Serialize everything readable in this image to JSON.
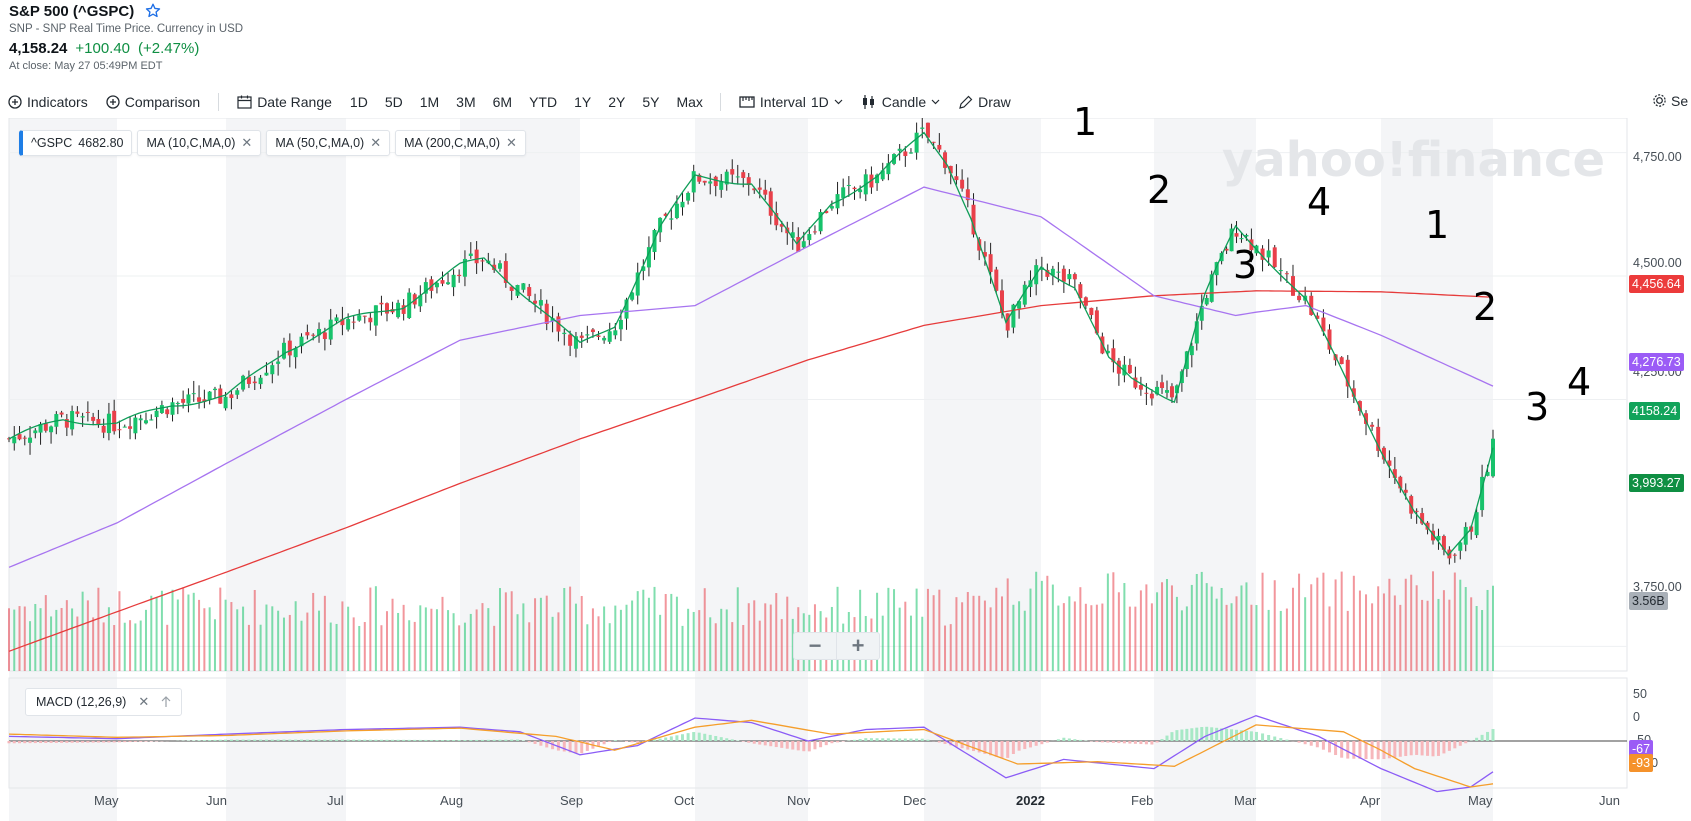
{
  "header": {
    "title": "S&P 500 (^GSPC)",
    "subtitle": "SNP - SNP Real Time Price. Currency in USD",
    "price": "4,158.24",
    "change": "+100.40",
    "change_pct": "(+2.47%)",
    "close_time": "At close: May 27 05:49PM EDT",
    "star_icon": "star-outline-icon"
  },
  "toolbar": {
    "indicators_label": "Indicators",
    "comparison_label": "Comparison",
    "date_range_label": "Date Range",
    "ranges": [
      "1D",
      "5D",
      "1M",
      "3M",
      "6M",
      "YTD",
      "1Y",
      "2Y",
      "5Y",
      "Max"
    ],
    "interval_label": "Interval",
    "interval_value": "1D",
    "candle_label": "Candle",
    "draw_label": "Draw",
    "settings_label": "Se"
  },
  "indicator_chips": [
    {
      "label": "^GSPC",
      "value": "4682.80",
      "closable": false
    },
    {
      "label": "MA (10,C,MA,0)",
      "closable": true
    },
    {
      "label": "MA (50,C,MA,0)",
      "closable": true
    },
    {
      "label": "MA (200,C,MA,0)",
      "closable": true
    }
  ],
  "watermark": "yahoo!finance",
  "zoom": {
    "minus": "−",
    "plus": "+"
  },
  "macd_label": "MACD (12,26,9)",
  "badges": {
    "ma200": {
      "text": "4,456.64",
      "color": "#ec3b3b"
    },
    "ma50": {
      "text": "4,276.73",
      "color": "#9b5cf6"
    },
    "price": {
      "text": "4158.24",
      "color": "#11a35a"
    },
    "ma10": {
      "text": "3,993.27",
      "color": "#0f8f43"
    },
    "volume": {
      "text": "3.56B",
      "color": "#a9b0b8"
    },
    "macd_line": {
      "text": "-67",
      "color": "#9b5cf6"
    },
    "macd_signal": {
      "text": "-93",
      "color": "#f5922b"
    }
  },
  "annotations": [
    "1",
    "2",
    "3",
    "4",
    "1",
    "2",
    "3",
    "4"
  ],
  "chart_data": {
    "type": "candlestick",
    "symbol": "^GSPC",
    "y_ticks": [
      "4,750.00",
      "4,500.00",
      "4,250.00",
      "3,750.00"
    ],
    "ylim": [
      3700,
      4820
    ],
    "x_labels": [
      "May",
      "Jun",
      "Jul",
      "Aug",
      "Sep",
      "Oct",
      "Nov",
      "Dec",
      "2022",
      "Feb",
      "Mar",
      "Apr",
      "May",
      "Jun"
    ],
    "macd_ticks": [
      "50",
      "0",
      "-50",
      "-100"
    ],
    "colors": {
      "up": "#17c26b",
      "down": "#e8404a",
      "ma10": "#0f9d58",
      "ma50": "#a774f0",
      "ma200": "#e63b3b",
      "macd": "#8b5cf6",
      "signal": "#f59e2b"
    },
    "close_path": [
      {
        "m": 0,
        "v": 4170
      },
      {
        "m": 0.5,
        "v": 4210
      },
      {
        "m": 1,
        "v": 4200
      },
      {
        "m": 1.5,
        "v": 4240
      },
      {
        "m": 2,
        "v": 4255
      },
      {
        "m": 2.5,
        "v": 4350
      },
      {
        "m": 3,
        "v": 4410
      },
      {
        "m": 3.5,
        "v": 4440
      },
      {
        "m": 4,
        "v": 4520
      },
      {
        "m": 4.2,
        "v": 4535
      },
      {
        "m": 4.6,
        "v": 4450
      },
      {
        "m": 5,
        "v": 4360
      },
      {
        "m": 5.3,
        "v": 4400
      },
      {
        "m": 5.7,
        "v": 4600
      },
      {
        "m": 6,
        "v": 4700
      },
      {
        "m": 6.5,
        "v": 4690
      },
      {
        "m": 6.9,
        "v": 4560
      },
      {
        "m": 7.2,
        "v": 4650
      },
      {
        "m": 7.6,
        "v": 4700
      },
      {
        "m": 8,
        "v": 4790
      },
      {
        "m": 8.2,
        "v": 4730
      },
      {
        "m": 8.4,
        "v": 4620
      },
      {
        "m": 8.7,
        "v": 4400
      },
      {
        "m": 9,
        "v": 4520
      },
      {
        "m": 9.3,
        "v": 4480
      },
      {
        "m": 9.6,
        "v": 4330
      },
      {
        "m": 9.8,
        "v": 4290
      },
      {
        "m": 10.2,
        "v": 4250
      },
      {
        "m": 10.5,
        "v": 4460
      },
      {
        "m": 10.8,
        "v": 4600
      },
      {
        "m": 11,
        "v": 4560
      },
      {
        "m": 11.4,
        "v": 4450
      },
      {
        "m": 11.7,
        "v": 4300
      },
      {
        "m": 12,
        "v": 4150
      },
      {
        "m": 12.3,
        "v": 4020
      },
      {
        "m": 12.6,
        "v": 3930
      },
      {
        "m": 12.8,
        "v": 3990
      },
      {
        "m": 13,
        "v": 4158
      }
    ],
    "ma50_path": [
      {
        "m": 0,
        "v": 3910
      },
      {
        "m": 1,
        "v": 4000
      },
      {
        "m": 2,
        "v": 4120
      },
      {
        "m": 3,
        "v": 4250
      },
      {
        "m": 4,
        "v": 4370
      },
      {
        "m": 5,
        "v": 4420
      },
      {
        "m": 6,
        "v": 4440
      },
      {
        "m": 7,
        "v": 4560
      },
      {
        "m": 8,
        "v": 4680
      },
      {
        "m": 9,
        "v": 4620
      },
      {
        "m": 10,
        "v": 4460
      },
      {
        "m": 10.8,
        "v": 4420
      },
      {
        "m": 11.4,
        "v": 4440
      },
      {
        "m": 12,
        "v": 4380
      },
      {
        "m": 13,
        "v": 4277
      }
    ],
    "ma200_path": [
      {
        "m": 0,
        "v": 3740
      },
      {
        "m": 1,
        "v": 3820
      },
      {
        "m": 2,
        "v": 3900
      },
      {
        "m": 3,
        "v": 3990
      },
      {
        "m": 4,
        "v": 4080
      },
      {
        "m": 5,
        "v": 4170
      },
      {
        "m": 6,
        "v": 4250
      },
      {
        "m": 7,
        "v": 4330
      },
      {
        "m": 8,
        "v": 4400
      },
      {
        "m": 9,
        "v": 4440
      },
      {
        "m": 10,
        "v": 4460
      },
      {
        "m": 11,
        "v": 4470
      },
      {
        "m": 12,
        "v": 4468
      },
      {
        "m": 13,
        "v": 4457
      }
    ],
    "macd_path": [
      {
        "m": 0,
        "v": 10
      },
      {
        "m": 1,
        "v": 5
      },
      {
        "m": 2,
        "v": 15
      },
      {
        "m": 3,
        "v": 25
      },
      {
        "m": 4,
        "v": 30
      },
      {
        "m": 4.5,
        "v": 20
      },
      {
        "m": 5,
        "v": -30
      },
      {
        "m": 5.5,
        "v": -10
      },
      {
        "m": 6,
        "v": 50
      },
      {
        "m": 6.5,
        "v": 40
      },
      {
        "m": 7,
        "v": 0
      },
      {
        "m": 7.5,
        "v": 25
      },
      {
        "m": 8,
        "v": 30
      },
      {
        "m": 8.7,
        "v": -80
      },
      {
        "m": 9.2,
        "v": -40
      },
      {
        "m": 10,
        "v": -60
      },
      {
        "m": 10.5,
        "v": 10
      },
      {
        "m": 11,
        "v": 55
      },
      {
        "m": 11.5,
        "v": 10
      },
      {
        "m": 12,
        "v": -60
      },
      {
        "m": 12.5,
        "v": -110
      },
      {
        "m": 12.8,
        "v": -100
      },
      {
        "m": 13,
        "v": -67
      }
    ],
    "signal_path": [
      {
        "m": 0,
        "v": 15
      },
      {
        "m": 1,
        "v": 8
      },
      {
        "m": 2,
        "v": 12
      },
      {
        "m": 3,
        "v": 22
      },
      {
        "m": 4,
        "v": 28
      },
      {
        "m": 4.8,
        "v": 10
      },
      {
        "m": 5.3,
        "v": -20
      },
      {
        "m": 6,
        "v": 30
      },
      {
        "m": 6.5,
        "v": 45
      },
      {
        "m": 7.2,
        "v": 15
      },
      {
        "m": 8,
        "v": 25
      },
      {
        "m": 8.8,
        "v": -50
      },
      {
        "m": 9.5,
        "v": -45
      },
      {
        "m": 10.2,
        "v": -55
      },
      {
        "m": 11,
        "v": 35
      },
      {
        "m": 11.7,
        "v": 20
      },
      {
        "m": 12.3,
        "v": -60
      },
      {
        "m": 12.8,
        "v": -100
      },
      {
        "m": 13,
        "v": -93
      }
    ]
  }
}
